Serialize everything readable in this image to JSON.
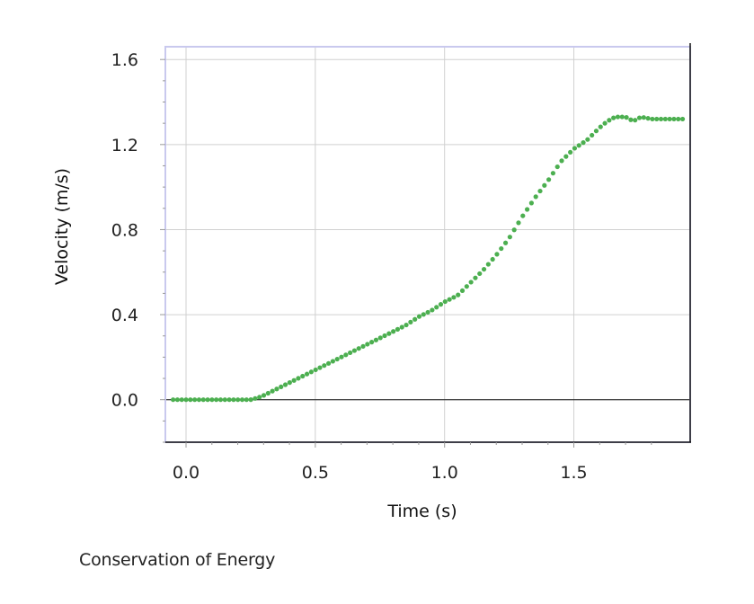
{
  "chart_data": {
    "type": "scatter",
    "title": "",
    "xlabel": "Time (s)",
    "ylabel": "Velocity (m/s)",
    "xlim": [
      -0.08,
      1.95
    ],
    "ylim": [
      -0.2,
      1.66
    ],
    "x_ticks": [
      "0.0",
      "0.5",
      "1.0",
      "1.5"
    ],
    "x_tick_values": [
      0.0,
      0.5,
      1.0,
      1.5
    ],
    "y_ticks": [
      "1.6",
      "1.2",
      "0.8",
      "0.4",
      "0.0"
    ],
    "y_tick_values": [
      1.6,
      1.2,
      0.8,
      0.4,
      0.0
    ],
    "grid": true,
    "zero_line": true,
    "series": [
      {
        "name": "Velocity",
        "color": "#4caf50",
        "x": [
          -0.05,
          0.0,
          0.05,
          0.1,
          0.15,
          0.2,
          0.25,
          0.28,
          0.3,
          0.35,
          0.4,
          0.45,
          0.5,
          0.55,
          0.6,
          0.65,
          0.7,
          0.75,
          0.8,
          0.85,
          0.9,
          0.95,
          1.0,
          1.05,
          1.1,
          1.15,
          1.2,
          1.25,
          1.3,
          1.35,
          1.4,
          1.45,
          1.5,
          1.55,
          1.6,
          1.63,
          1.66,
          1.7,
          1.73,
          1.76,
          1.8,
          1.83,
          1.86,
          1.9,
          1.93
        ],
        "y": [
          0.0,
          0.0,
          0.0,
          0.0,
          0.0,
          0.0,
          0.0,
          0.01,
          0.02,
          0.05,
          0.08,
          0.11,
          0.14,
          0.17,
          0.2,
          0.23,
          0.26,
          0.29,
          0.32,
          0.35,
          0.39,
          0.42,
          0.46,
          0.49,
          0.55,
          0.61,
          0.68,
          0.76,
          0.86,
          0.95,
          1.03,
          1.12,
          1.18,
          1.22,
          1.28,
          1.31,
          1.33,
          1.33,
          1.31,
          1.33,
          1.32,
          1.32,
          1.32,
          1.32,
          1.32
        ]
      }
    ]
  },
  "caption": "Conservation of Energy"
}
